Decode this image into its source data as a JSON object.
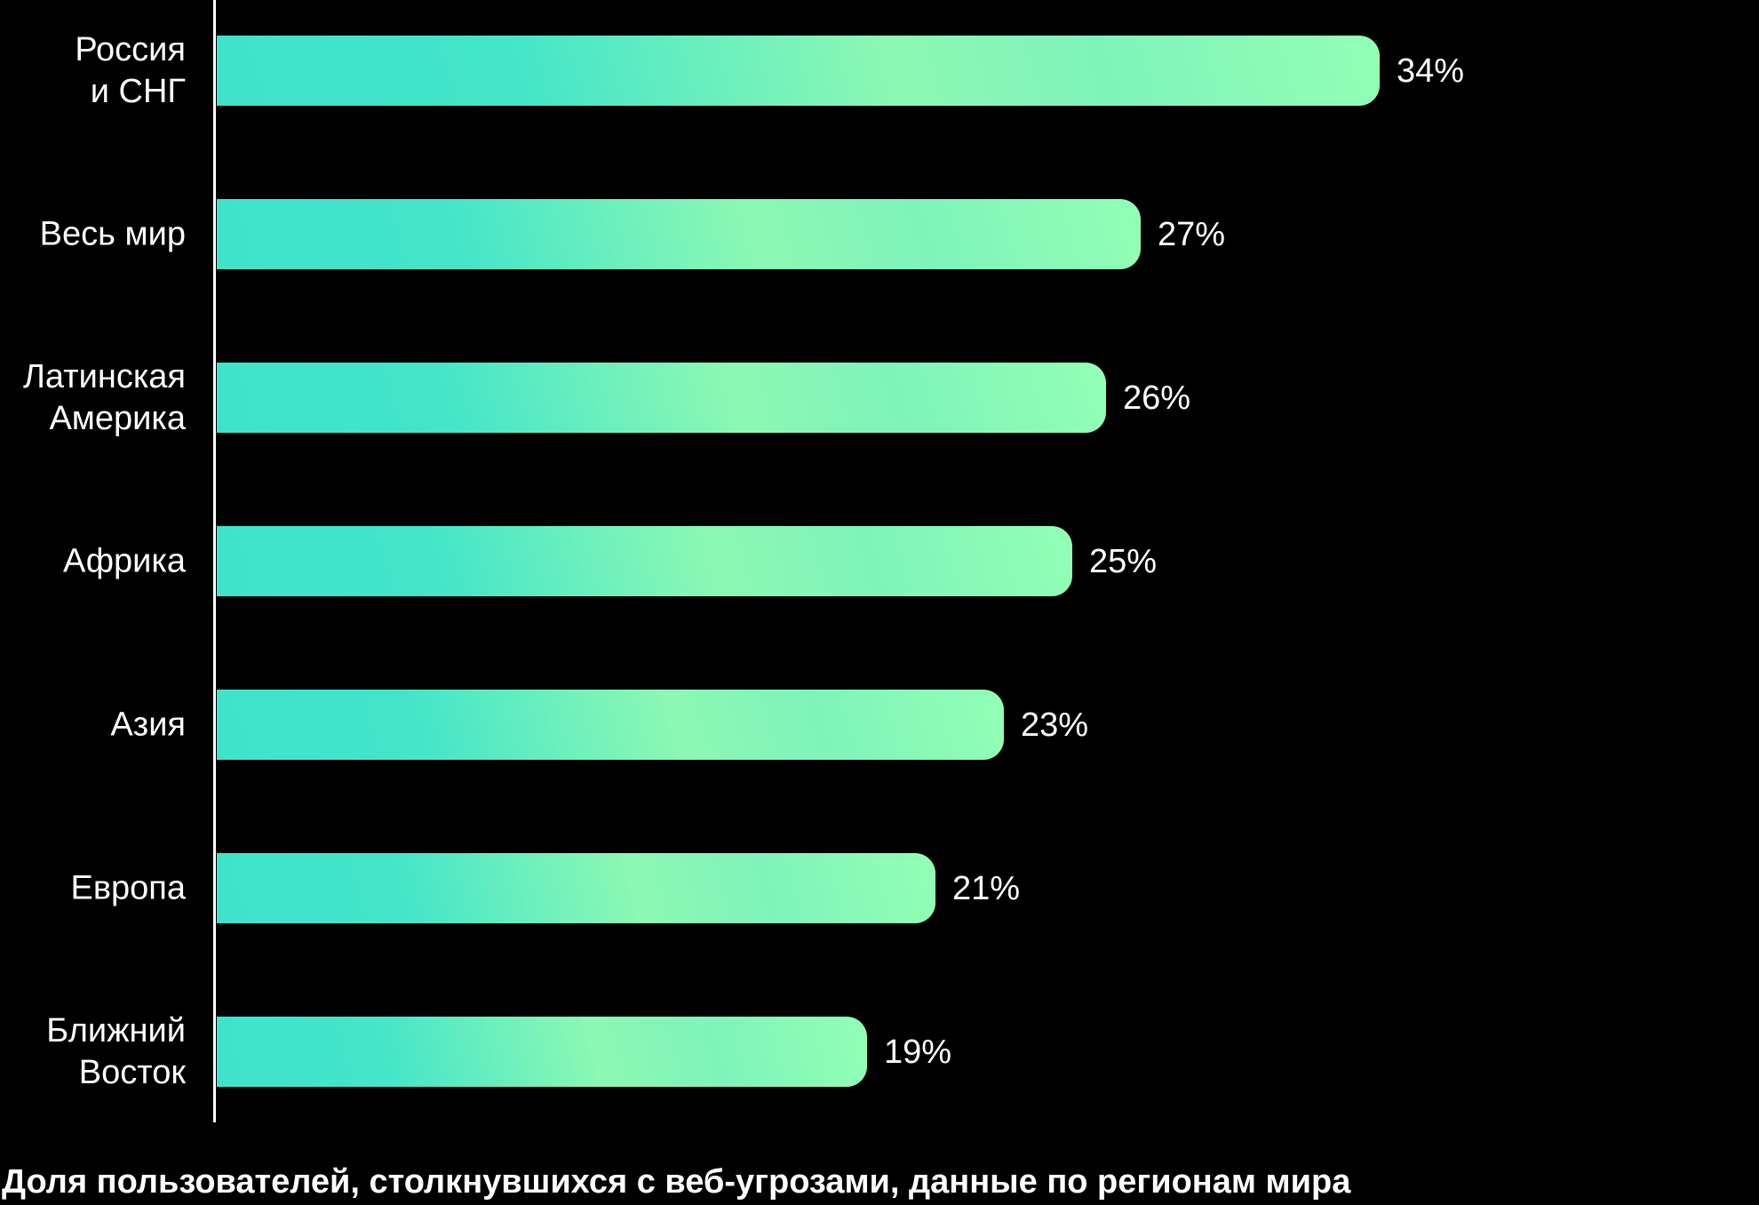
{
  "chart_data": {
    "type": "bar",
    "orientation": "horizontal",
    "title": "",
    "xlabel": "",
    "ylabel": "",
    "xlim": [
      0,
      34
    ],
    "grid": false,
    "legend": false,
    "categories": [
      "Россия\nи СНГ",
      "Весь мир",
      "Латинская\nАмерика",
      "Африка",
      "Азия",
      "Европа",
      "Ближний\nВосток"
    ],
    "values": [
      34,
      27,
      26,
      25,
      23,
      21,
      19
    ],
    "value_labels": [
      "34%",
      "27%",
      "26%",
      "25%",
      "23%",
      "21%",
      "19%"
    ],
    "caption": "Доля пользователей, столкнувшихся с веб-угрозами, данные по регионам мира",
    "colors": {
      "background": "#000000",
      "bar_gradient_start": "#3ee3ca",
      "bar_gradient_mid": "#8cf8b3",
      "bar_gradient_end": "#92ffb4",
      "axis_line": "#ffffff",
      "text": "#ffffff"
    }
  }
}
